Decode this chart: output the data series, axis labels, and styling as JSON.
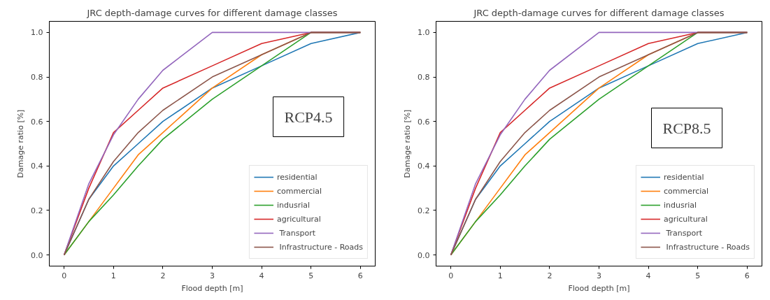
{
  "chart_data": [
    {
      "type": "line",
      "title": "JRC depth-damage curves for different damage classes",
      "xlabel": "Flood depth [m]",
      "ylabel": "Damage ratio [%]",
      "x": [
        0,
        0.5,
        1,
        1.5,
        2,
        3,
        4,
        5,
        6
      ],
      "xlim": [
        -0.3,
        6.3
      ],
      "ylim": [
        -0.05,
        1.05
      ],
      "xticks": [
        0,
        1,
        2,
        3,
        4,
        5,
        6
      ],
      "yticks": [
        {
          "value": 0,
          "label": "0.0"
        },
        {
          "value": 0.2,
          "label": "0.2"
        },
        {
          "value": 0.4,
          "label": "0.4"
        },
        {
          "value": 0.6,
          "label": "0.6"
        },
        {
          "value": 0.8,
          "label": "0.8"
        },
        {
          "value": 1,
          "label": "1.0"
        }
      ],
      "grid": false,
      "legend": "bottom right",
      "annotations": [
        "RCP4.5"
      ],
      "series": [
        {
          "name": "residential",
          "color": "#1f77b4",
          "values": [
            0,
            0.25,
            0.4,
            0.5,
            0.6,
            0.75,
            0.85,
            0.95,
            1.0
          ]
        },
        {
          "name": "commercial",
          "color": "#ff7f0e",
          "values": [
            0,
            0.15,
            0.3,
            0.45,
            0.55,
            0.75,
            0.9,
            1.0,
            1.0
          ]
        },
        {
          "name": "indusrial",
          "color": "#2ca02c",
          "values": [
            0,
            0.15,
            0.27,
            0.4,
            0.52,
            0.7,
            0.85,
            1.0,
            1.0
          ]
        },
        {
          "name": "agricultural",
          "color": "#d62728",
          "values": [
            0,
            0.3,
            0.55,
            0.65,
            0.75,
            0.85,
            0.95,
            1.0,
            1.0
          ]
        },
        {
          "name": " Transport",
          "color": "#9467bd",
          "values": [
            0,
            0.32,
            0.54,
            0.7,
            0.83,
            1.0,
            1.0,
            1.0,
            1.0
          ]
        },
        {
          "name": " Infrastructure - Roads",
          "color": "#8c564b",
          "values": [
            0,
            0.25,
            0.42,
            0.55,
            0.65,
            0.8,
            0.9,
            1.0,
            1.0
          ]
        }
      ]
    },
    {
      "type": "line",
      "title": "JRC depth-damage curves for different damage classes",
      "xlabel": "Flood depth [m]",
      "ylabel": "Damage ratio [%]",
      "x": [
        0,
        0.5,
        1,
        1.5,
        2,
        3,
        4,
        5,
        6
      ],
      "xlim": [
        -0.3,
        6.3
      ],
      "ylim": [
        -0.05,
        1.05
      ],
      "xticks": [
        0,
        1,
        2,
        3,
        4,
        5,
        6
      ],
      "yticks": [
        {
          "value": 0,
          "label": "0.0"
        },
        {
          "value": 0.2,
          "label": "0.2"
        },
        {
          "value": 0.4,
          "label": "0.4"
        },
        {
          "value": 0.6,
          "label": "0.6"
        },
        {
          "value": 0.8,
          "label": "0.8"
        },
        {
          "value": 1,
          "label": "1.0"
        }
      ],
      "grid": false,
      "legend": "bottom right",
      "annotations": [
        "RCP8.5"
      ],
      "series": [
        {
          "name": "residential",
          "color": "#1f77b4",
          "values": [
            0,
            0.25,
            0.4,
            0.5,
            0.6,
            0.75,
            0.85,
            0.95,
            1.0
          ]
        },
        {
          "name": "commercial",
          "color": "#ff7f0e",
          "values": [
            0,
            0.15,
            0.3,
            0.45,
            0.55,
            0.75,
            0.9,
            1.0,
            1.0
          ]
        },
        {
          "name": "indusrial",
          "color": "#2ca02c",
          "values": [
            0,
            0.15,
            0.27,
            0.4,
            0.52,
            0.7,
            0.85,
            1.0,
            1.0
          ]
        },
        {
          "name": "agricultural",
          "color": "#d62728",
          "values": [
            0,
            0.3,
            0.55,
            0.65,
            0.75,
            0.85,
            0.95,
            1.0,
            1.0
          ]
        },
        {
          "name": " Transport",
          "color": "#9467bd",
          "values": [
            0,
            0.32,
            0.54,
            0.7,
            0.83,
            1.0,
            1.0,
            1.0,
            1.0
          ]
        },
        {
          "name": " Infrastructure - Roads",
          "color": "#8c564b",
          "values": [
            0,
            0.25,
            0.42,
            0.55,
            0.65,
            0.8,
            0.9,
            1.0,
            1.0
          ]
        }
      ]
    }
  ]
}
